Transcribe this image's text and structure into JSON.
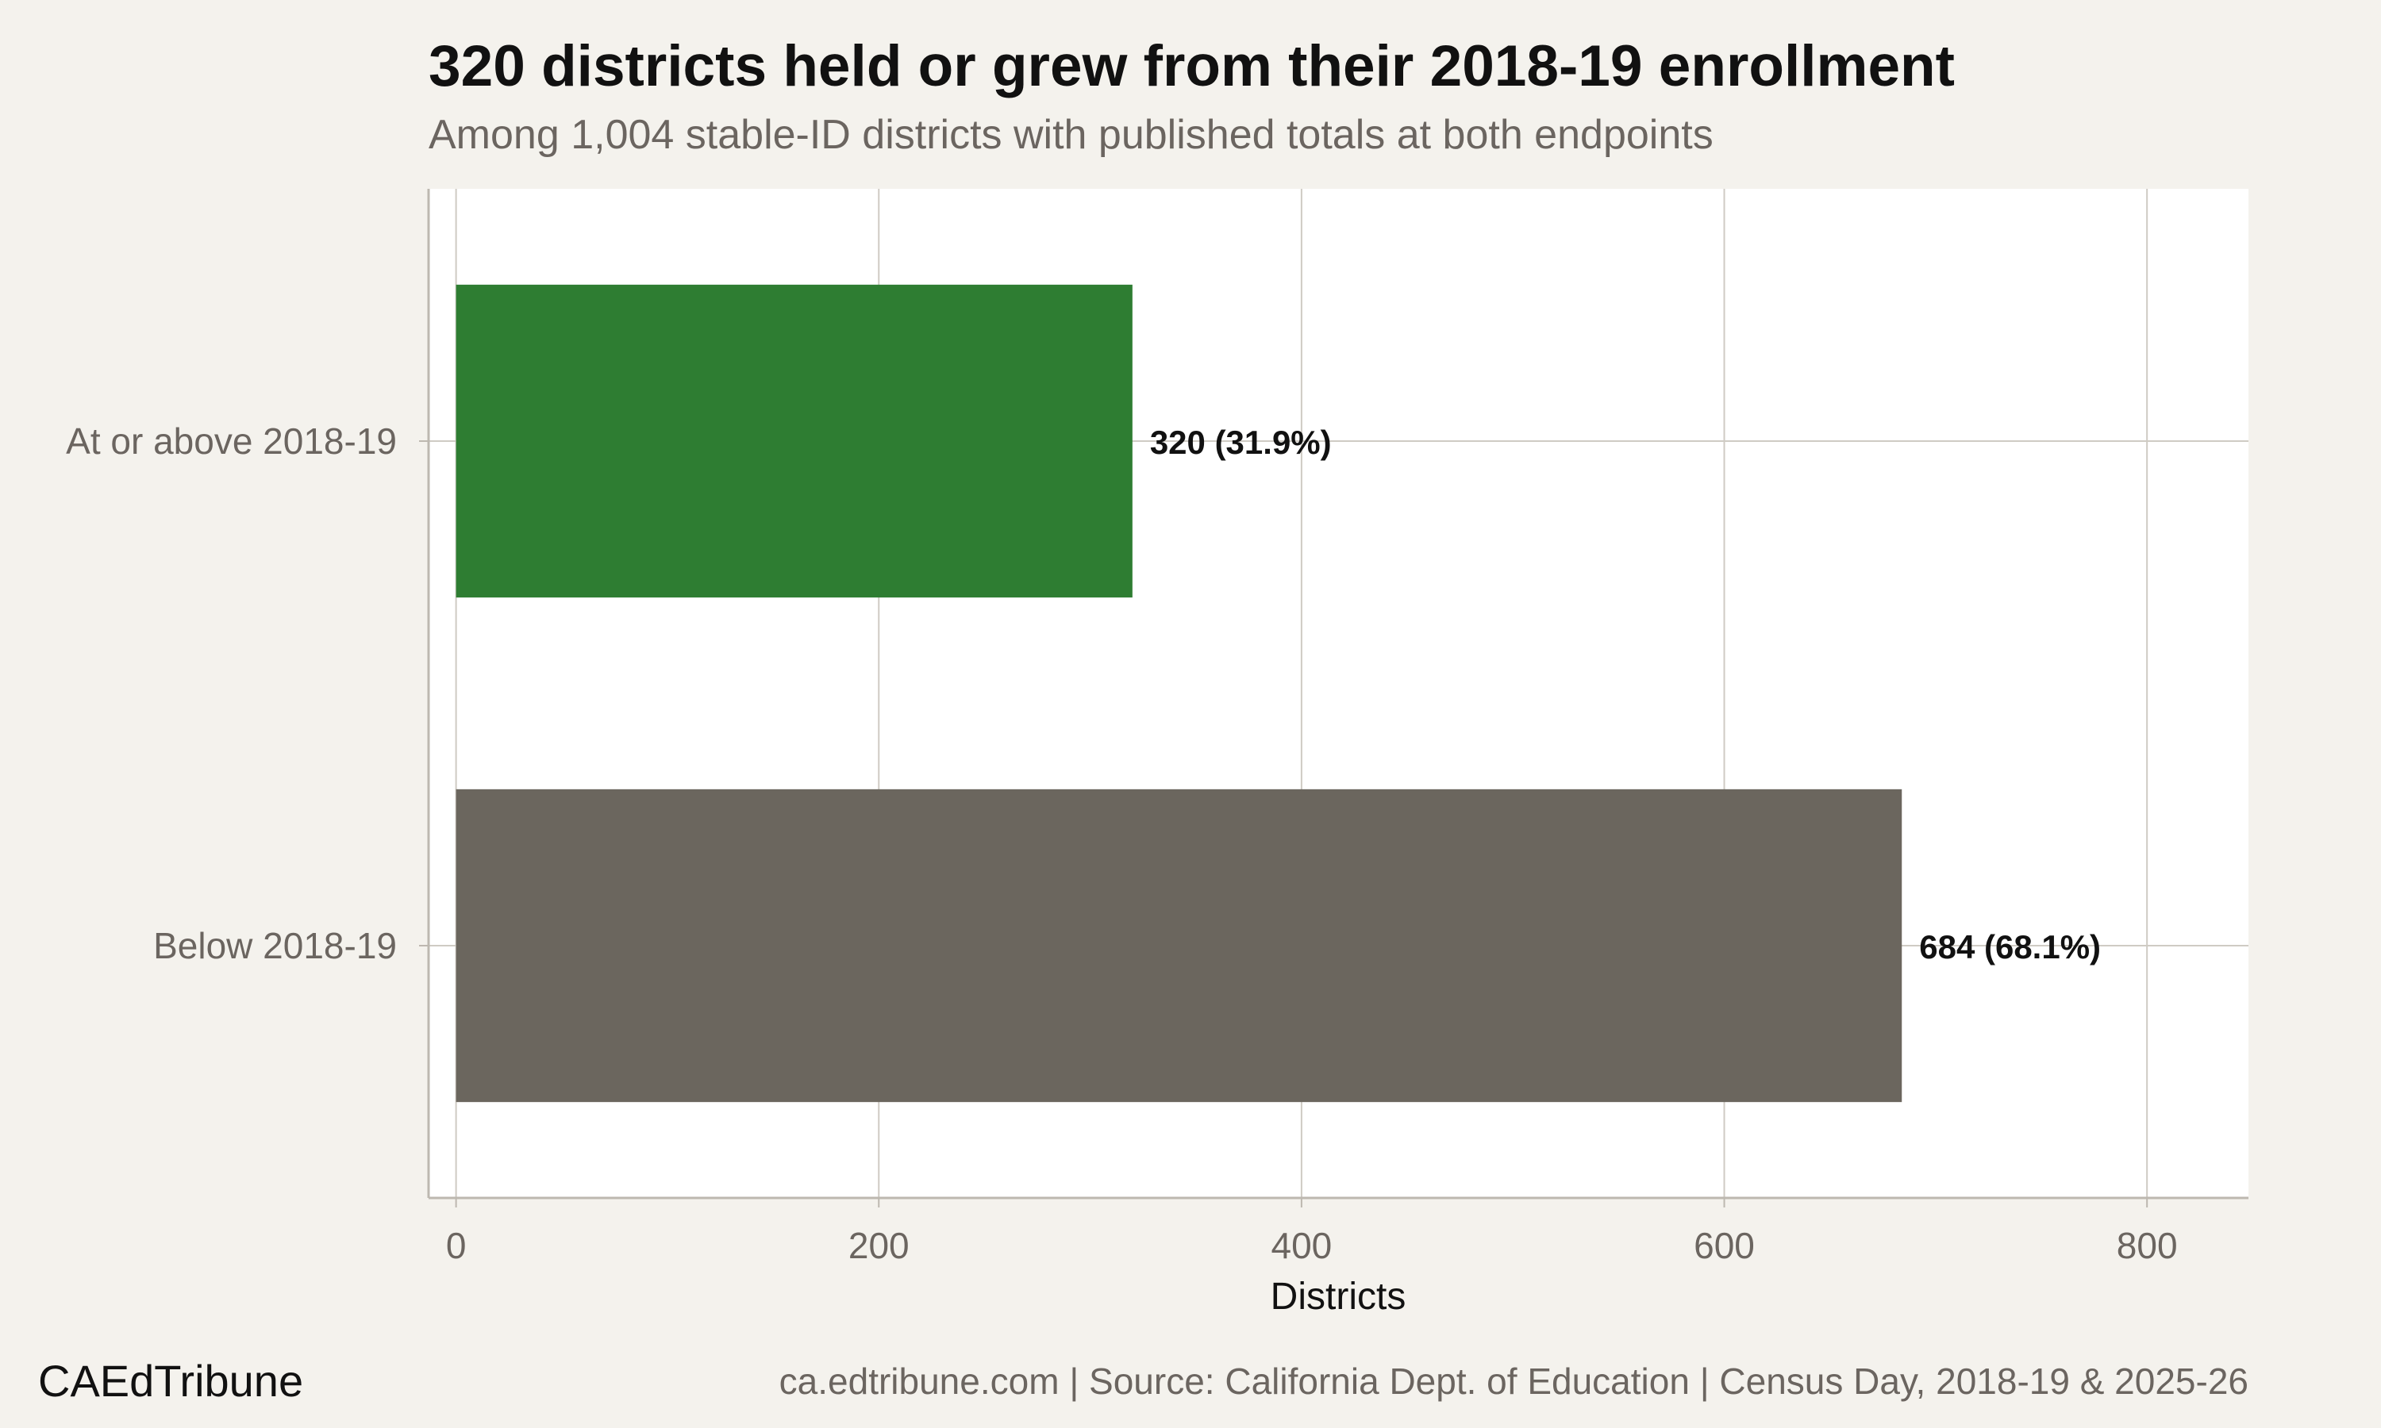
{
  "chart_data": {
    "type": "bar",
    "orientation": "horizontal",
    "title": "320 districts held or grew from their 2018-19 enrollment",
    "subtitle": "Among 1,004 stable-ID districts with published totals at both endpoints",
    "xlabel": "Districts",
    "ylabel": "",
    "categories": [
      "At or above 2018-19",
      "Below 2018-19"
    ],
    "values": [
      320,
      684
    ],
    "data_labels": [
      "320 (31.9%)",
      "684 (68.1%)"
    ],
    "colors": [
      "#2e7d32",
      "#6b665e"
    ],
    "xlim": [
      -13,
      848
    ],
    "x_ticks": [
      0,
      200,
      400,
      600,
      800
    ],
    "x_tick_labels": [
      "0",
      "200",
      "400",
      "600",
      "800"
    ],
    "grid": true,
    "legend": "none"
  },
  "footer": {
    "brand": "CAEdTribune",
    "caption": "ca.edtribune.com | Source: California Dept. of Education | Census Day, 2018-19 & 2025-26"
  }
}
